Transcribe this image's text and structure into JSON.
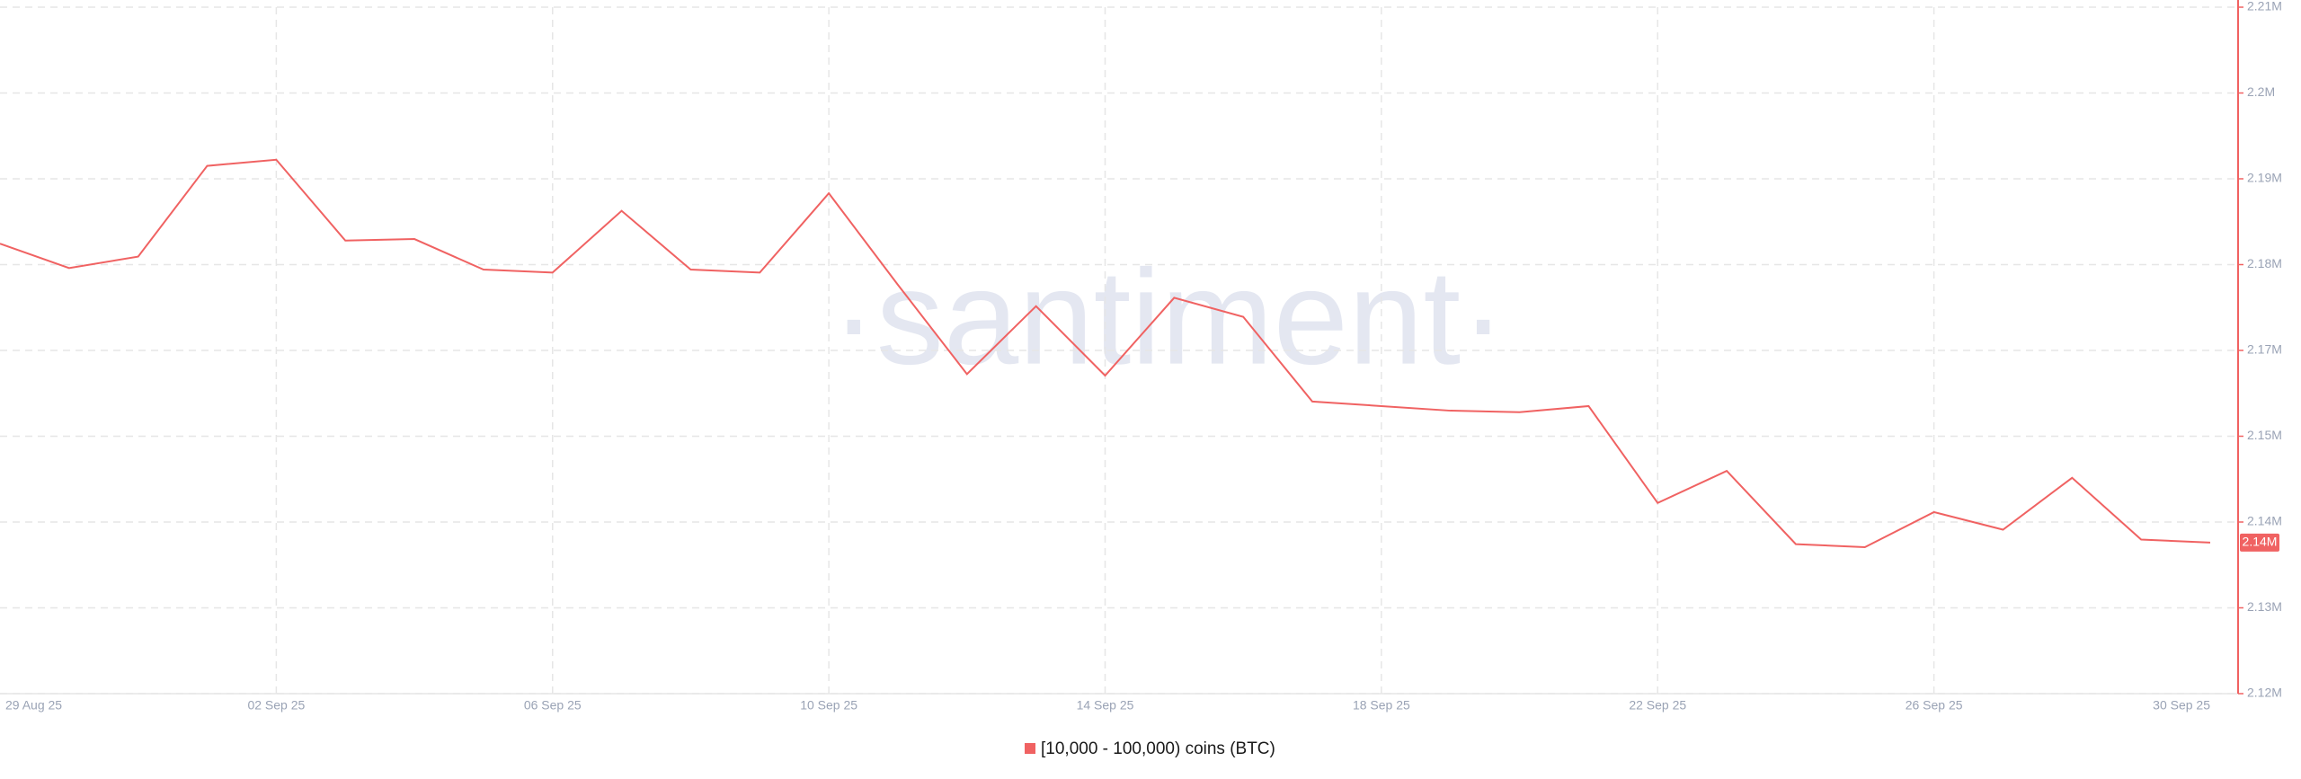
{
  "chart_data": {
    "type": "line",
    "watermark": "·santiment·",
    "categories": [
      "29 Aug 25",
      null,
      null,
      null,
      "02 Sep 25",
      null,
      null,
      null,
      "06 Sep 25",
      null,
      null,
      null,
      "10 Sep 25",
      null,
      null,
      null,
      "14 Sep 25",
      null,
      null,
      null,
      "18 Sep 25",
      null,
      null,
      null,
      "22 Sep 25",
      null,
      null,
      null,
      "26 Sep 25",
      null,
      null,
      null,
      "30 Sep 25"
    ],
    "series": [
      {
        "name": "[10,000 - 100,000) coins (BTC)",
        "color": "#f06262",
        "values": [
          2179000,
          2175800,
          2177300,
          2189200,
          2190000,
          2179400,
          2179600,
          2175600,
          2175200,
          2183300,
          2175600,
          2175200,
          2185600,
          2173600,
          2161900,
          2170800,
          2161700,
          2171900,
          2169400,
          2158300,
          2157700,
          2157100,
          2156900,
          2157700,
          2145000,
          2149200,
          2139600,
          2139200,
          2143800,
          2141500,
          2148300,
          2140200,
          2139800
        ],
        "value_labels": [
          null,
          null,
          null,
          null,
          null,
          null,
          null,
          null,
          null,
          null,
          null,
          null,
          null,
          null,
          null,
          null,
          null,
          null,
          null,
          null,
          null,
          null,
          null,
          null,
          null,
          null,
          null,
          null,
          null,
          null,
          null,
          null,
          "2.14M"
        ]
      }
    ],
    "ylim": [
      2120000,
      2210000
    ],
    "yticks": [
      {
        "value": 2120000,
        "label": "2.12M"
      },
      {
        "value": 2131250,
        "label": "2.13M"
      },
      {
        "value": 2142500,
        "label": "2.14M"
      },
      {
        "value": 2153750,
        "label": "2.15M"
      },
      {
        "value": 2165000,
        "label": "2.17M"
      },
      {
        "value": 2176250,
        "label": "2.18M"
      },
      {
        "value": 2187500,
        "label": "2.19M"
      },
      {
        "value": 2198750,
        "label": "2.2M"
      },
      {
        "value": 2210000,
        "label": "2.21M"
      }
    ],
    "grid": true,
    "legend": "bottom"
  }
}
